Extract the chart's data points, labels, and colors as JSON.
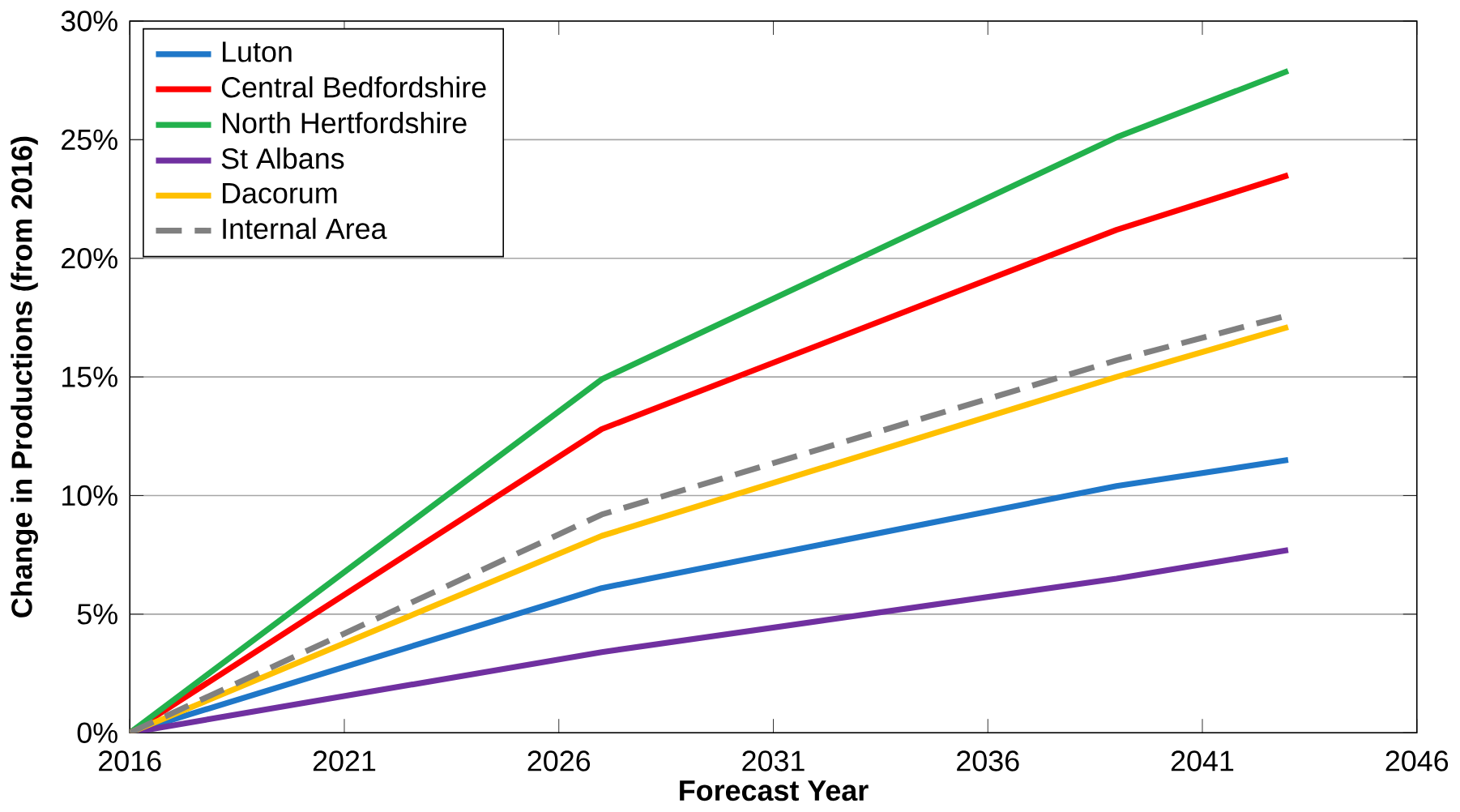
{
  "chart_data": {
    "type": "line",
    "xlabel": "Forecast Year",
    "ylabel": "Change in Productions (from 2016)",
    "xlim": [
      2016,
      2046
    ],
    "xticks": [
      2016,
      2021,
      2026,
      2031,
      2036,
      2041,
      2046
    ],
    "ylim": [
      0,
      30
    ],
    "yticks": [
      {
        "value": 0,
        "label": "0%"
      },
      {
        "value": 5,
        "label": "5%"
      },
      {
        "value": 10,
        "label": "10%"
      },
      {
        "value": 15,
        "label": "15%"
      },
      {
        "value": 20,
        "label": "20%"
      },
      {
        "value": 25,
        "label": "25%"
      },
      {
        "value": 30,
        "label": "30%"
      }
    ],
    "grid": "y",
    "legend": "top left",
    "marker": "none",
    "series": [
      {
        "name": "Luton",
        "color": "#1f77c8",
        "x": [
          2016,
          2027,
          2039,
          2043
        ],
        "values": [
          0,
          6.1,
          10.4,
          11.5
        ]
      },
      {
        "name": "Central Bedfordshire",
        "color": "#ff0000",
        "x": [
          2016,
          2027,
          2039,
          2043
        ],
        "values": [
          0,
          12.8,
          21.2,
          23.5
        ]
      },
      {
        "name": "North Hertfordshire",
        "color": "#22b14c",
        "x": [
          2016,
          2027,
          2039,
          2043
        ],
        "values": [
          0,
          14.9,
          25.1,
          27.9
        ]
      },
      {
        "name": "St Albans",
        "color": "#7030a0",
        "x": [
          2016,
          2027,
          2039,
          2043
        ],
        "values": [
          0,
          3.4,
          6.5,
          7.7
        ]
      },
      {
        "name": "Dacorum",
        "color": "#ffc000",
        "x": [
          2016,
          2027,
          2039,
          2043
        ],
        "values": [
          0,
          8.3,
          15.0,
          17.1
        ]
      },
      {
        "name": "Internal Area",
        "color": "#808080",
        "line_style": "dashed",
        "x": [
          2016,
          2027,
          2039,
          2043
        ],
        "values": [
          0,
          9.2,
          15.7,
          17.6
        ]
      }
    ]
  }
}
